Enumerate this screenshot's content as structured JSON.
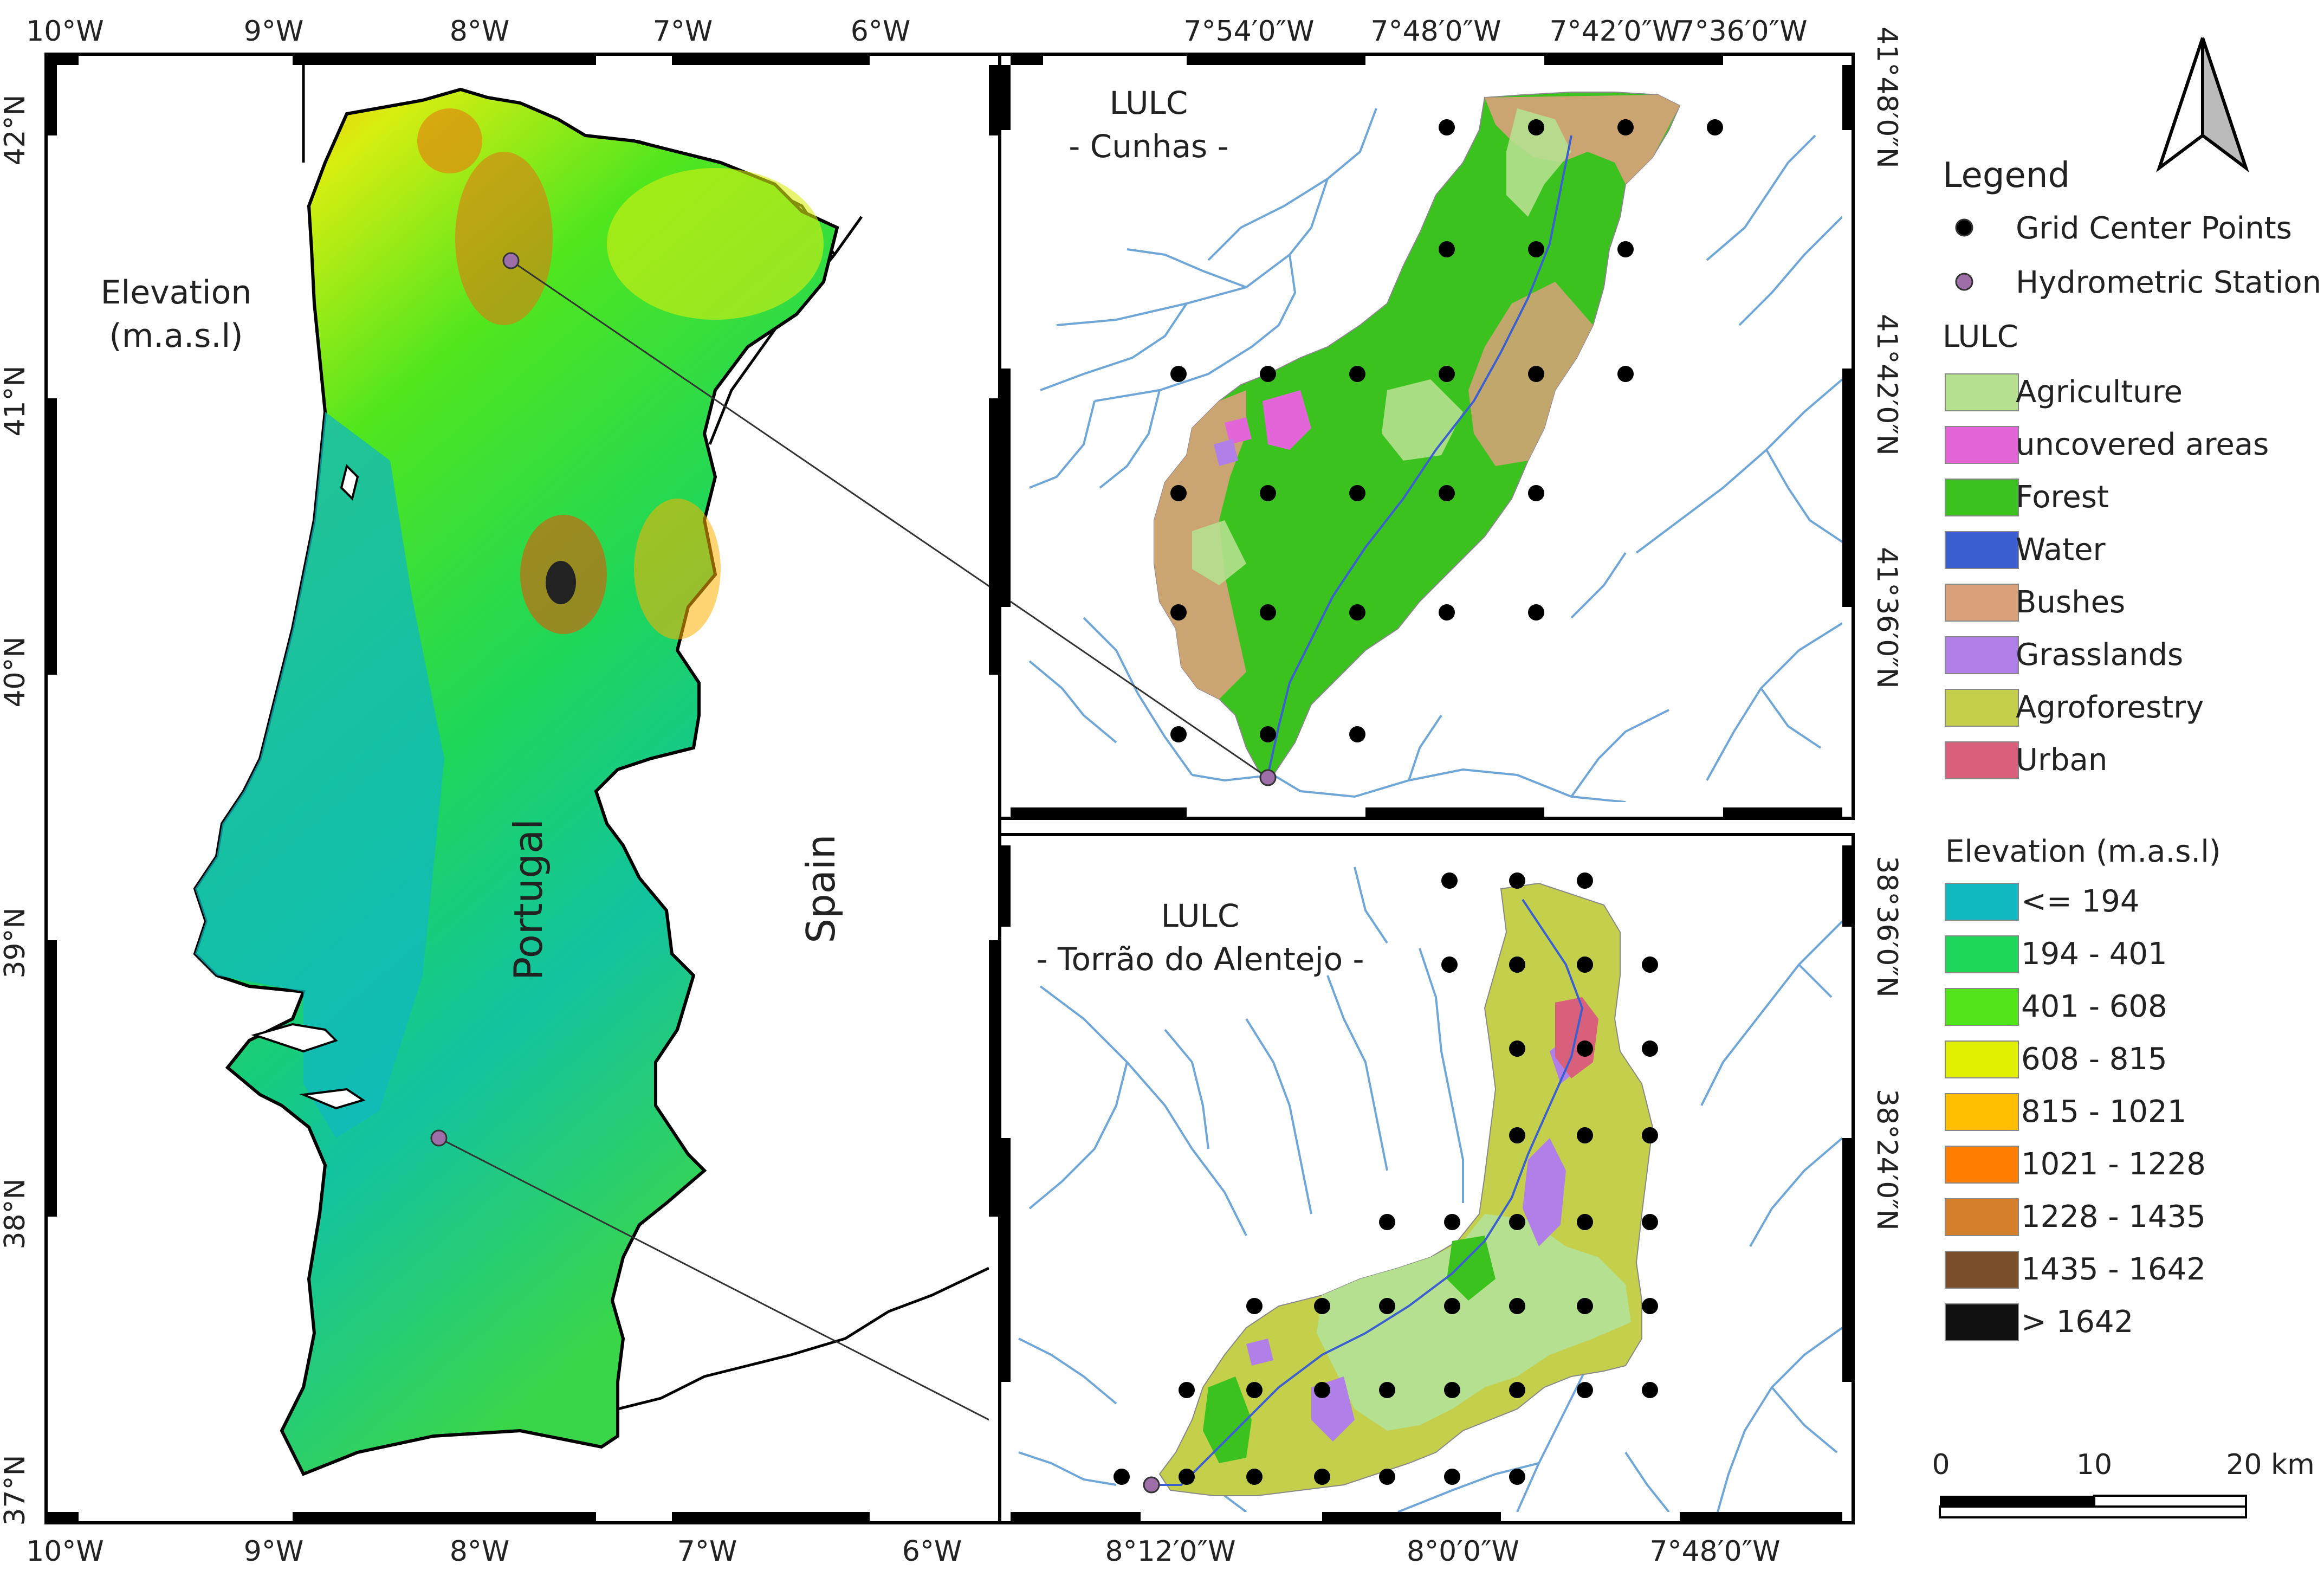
{
  "left_panel": {
    "lon_labels": [
      "10°W",
      "9°W",
      "8°W",
      "7°W",
      "6°W"
    ],
    "lat_labels": [
      "42°N",
      "41°N",
      "40°N",
      "39°N",
      "38°N",
      "37°N"
    ],
    "elevation_title_line1": "Elevation",
    "elevation_title_line2": "(m.a.s.l)",
    "label_portugal": "Portugal",
    "label_spain": "Spain"
  },
  "cunhas_panel": {
    "title_line1": "LULC",
    "title_line2": "- Cunhas -",
    "lon_labels": [
      "7°54′0″W",
      "7°48′0″W",
      "7°42′0″W",
      "7°36′0″W"
    ],
    "lat_labels": [
      "41°48′0″N",
      "41°42′0″N",
      "41°36′0″N"
    ]
  },
  "torrao_panel": {
    "title_line1": "LULC",
    "title_line2": "- Torrão do Alentejo -",
    "lon_labels": [
      "8°12′0″W",
      "8°0′0″W",
      "7°48′0″W"
    ],
    "lat_labels": [
      "38°36′0″N",
      "38°24′0″N"
    ]
  },
  "legend": {
    "title": "Legend",
    "points": [
      {
        "label": "Grid Center Points",
        "color": "#000000"
      },
      {
        "label": "Hydrometric Station",
        "color": "#9d6ea8"
      }
    ],
    "lulc_title": "LULC",
    "lulc": [
      {
        "label": "Agriculture",
        "color": "#b5e08f"
      },
      {
        "label": "uncovered areas",
        "color": "#e266d8"
      },
      {
        "label": "Forest",
        "color": "#3cc21f"
      },
      {
        "label": "Water",
        "color": "#3b5fd0"
      },
      {
        "label": "Bushes",
        "color": "#d9a27a"
      },
      {
        "label": "Grasslands",
        "color": "#b07fe8"
      },
      {
        "label": "Agroforestry",
        "color": "#c4cf4c"
      },
      {
        "label": "Urban",
        "color": "#d9607a"
      }
    ],
    "elev_title": "Elevation (m.a.s.l)",
    "elev": [
      {
        "label": "<= 194",
        "color": "#10b8c0"
      },
      {
        "label": "194 - 401",
        "color": "#1ed65a"
      },
      {
        "label": "401 - 608",
        "color": "#52e61a"
      },
      {
        "label": "608 - 815",
        "color": "#e0f000"
      },
      {
        "label": "815 - 1021",
        "color": "#ffbf00"
      },
      {
        "label": "1021 - 1228",
        "color": "#ff7d00"
      },
      {
        "label": "1228 - 1435",
        "color": "#d47f2a"
      },
      {
        "label": "1435 - 1642",
        "color": "#7a4e2a"
      },
      {
        "label": "> 1642",
        "color": "#111111"
      }
    ]
  },
  "scale_bar": {
    "labels": [
      "0",
      "10",
      "20 km"
    ]
  },
  "colors": {
    "river": "#6fa6d8",
    "frame": "#000000",
    "background": "#ffffff"
  }
}
